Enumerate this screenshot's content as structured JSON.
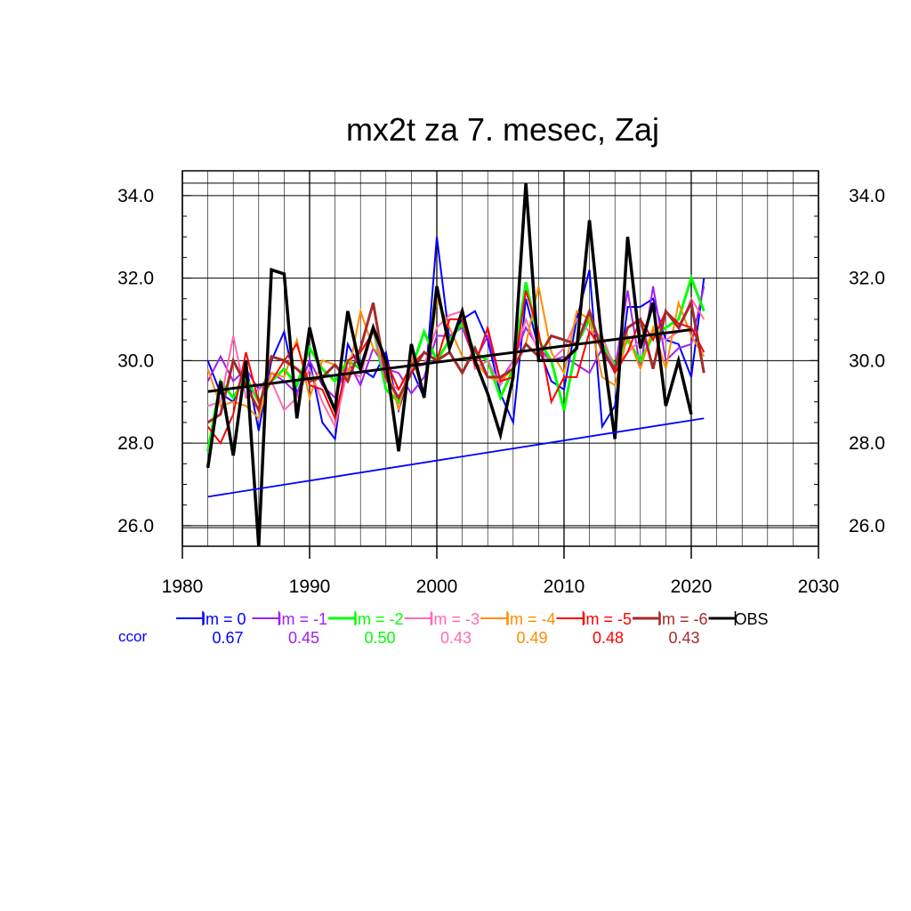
{
  "chart_data": {
    "type": "line",
    "title": "mx2t za 7. mesec, Zaj",
    "xlabel": "",
    "ylabel": "",
    "xlim": [
      1980,
      2030
    ],
    "ylim": [
      25.5,
      34.6
    ],
    "x_ticks": [
      1980,
      1990,
      2000,
      2010,
      2020,
      2030
    ],
    "y_ticks": [
      26.0,
      28.0,
      30.0,
      32.0,
      34.0
    ],
    "y_tick_labels": [
      "26.0",
      "28.0",
      "30.0",
      "32.0",
      "34.0"
    ],
    "grid": true,
    "legend_position": "bottom",
    "ccor_label": "ccor",
    "series": [
      {
        "name": "lm = 0",
        "color": "#0000ff",
        "width": 2,
        "ccor": "0.67",
        "x": [
          1982,
          1983,
          1984,
          1985,
          1986,
          1987,
          1988,
          1989,
          1990,
          1991,
          1992,
          1993,
          1994,
          1995,
          1996,
          1997,
          1998,
          1999,
          2000,
          2001,
          2002,
          2003,
          2004,
          2005,
          2006,
          2007,
          2008,
          2009,
          2010,
          2011,
          2012,
          2013,
          2014,
          2015,
          2016,
          2017,
          2018,
          2019,
          2020,
          2021
        ],
        "y": [
          30.0,
          29.2,
          29.0,
          29.9,
          28.3,
          30.0,
          30.7,
          29.2,
          30.0,
          28.5,
          28.1,
          30.4,
          29.8,
          29.6,
          30.2,
          28.8,
          29.8,
          29.1,
          33.0,
          30.5,
          31.0,
          31.2,
          30.5,
          29.2,
          28.5,
          31.5,
          30.3,
          29.5,
          29.3,
          31.0,
          32.2,
          28.4,
          28.9,
          31.3,
          31.3,
          31.5,
          30.5,
          30.4,
          29.6,
          32.0
        ]
      },
      {
        "name": "lm = -1",
        "color": "#a020f0",
        "width": 2,
        "ccor": "0.45",
        "x": [
          1982,
          1983,
          1984,
          1985,
          1986,
          1987,
          1988,
          1989,
          1990,
          1991,
          1992,
          1993,
          1994,
          1995,
          1996,
          1997,
          1998,
          1999,
          2000,
          2001,
          2002,
          2003,
          2004,
          2005,
          2006,
          2007,
          2008,
          2009,
          2010,
          2011,
          2012,
          2013,
          2014,
          2015,
          2016,
          2017,
          2018,
          2019,
          2020,
          2021
        ],
        "y": [
          29.5,
          30.1,
          29.5,
          29.8,
          29.3,
          29.7,
          29.5,
          29.2,
          30.0,
          29.4,
          29.1,
          30.0,
          29.4,
          30.3,
          29.8,
          29.7,
          29.2,
          29.6,
          30.6,
          30.6,
          30.8,
          30.0,
          30.6,
          29.5,
          30.0,
          30.8,
          30.3,
          30.0,
          30.1,
          29.9,
          29.7,
          30.3,
          29.8,
          31.7,
          29.8,
          31.8,
          30.0,
          30.3,
          30.4,
          31.8
        ]
      },
      {
        "name": "lm = -2",
        "color": "#00ff00",
        "width": 3,
        "ccor": "0.50",
        "x": [
          1982,
          1983,
          1984,
          1985,
          1986,
          1987,
          1988,
          1989,
          1990,
          1991,
          1992,
          1993,
          1994,
          1995,
          1996,
          1997,
          1998,
          1999,
          2000,
          2001,
          2002,
          2003,
          2004,
          2005,
          2006,
          2007,
          2008,
          2009,
          2010,
          2011,
          2012,
          2013,
          2014,
          2015,
          2016,
          2017,
          2018,
          2019,
          2020,
          2021
        ],
        "y": [
          27.8,
          29.5,
          29.1,
          29.6,
          29.0,
          29.5,
          29.8,
          29.4,
          30.3,
          29.8,
          29.5,
          30.0,
          29.8,
          30.8,
          29.3,
          29.0,
          29.8,
          30.7,
          30.0,
          30.5,
          30.9,
          30.2,
          30.0,
          29.1,
          29.8,
          31.9,
          30.5,
          30.0,
          28.8,
          30.4,
          31.0,
          30.4,
          29.9,
          30.5,
          30.0,
          30.6,
          30.8,
          31.0,
          32.0,
          31.2
        ]
      },
      {
        "name": "lm = -3",
        "color": "#ff69b4",
        "width": 2,
        "ccor": "0.43",
        "x": [
          1982,
          1983,
          1984,
          1985,
          1986,
          1987,
          1988,
          1989,
          1990,
          1991,
          1992,
          1993,
          1994,
          1995,
          1996,
          1997,
          1998,
          1999,
          2000,
          2001,
          2002,
          2003,
          2004,
          2005,
          2006,
          2007,
          2008,
          2009,
          2010,
          2011,
          2012,
          2013,
          2014,
          2015,
          2016,
          2017,
          2018,
          2019,
          2020,
          2021
        ],
        "y": [
          28.9,
          29.0,
          30.6,
          29.1,
          29.3,
          29.5,
          28.8,
          29.1,
          29.8,
          29.0,
          28.4,
          29.8,
          29.6,
          30.8,
          29.5,
          29.3,
          29.8,
          29.9,
          30.8,
          31.1,
          31.2,
          29.8,
          30.0,
          29.4,
          30.0,
          31.0,
          30.2,
          30.0,
          30.3,
          31.0,
          30.7,
          30.6,
          29.8,
          30.2,
          30.5,
          30.7,
          30.5,
          30.7,
          31.5,
          31.0
        ]
      },
      {
        "name": "lm = -4",
        "color": "#ff8c00",
        "width": 2,
        "ccor": "0.49",
        "x": [
          1982,
          1983,
          1984,
          1985,
          1986,
          1987,
          1988,
          1989,
          1990,
          1991,
          1992,
          1993,
          1994,
          1995,
          1996,
          1997,
          1998,
          1999,
          2000,
          2001,
          2002,
          2003,
          2004,
          2005,
          2006,
          2007,
          2008,
          2009,
          2010,
          2011,
          2012,
          2013,
          2014,
          2015,
          2016,
          2017,
          2018,
          2019,
          2020,
          2021
        ],
        "y": [
          29.8,
          28.9,
          29.0,
          28.9,
          28.6,
          29.7,
          29.6,
          30.5,
          29.1,
          30.0,
          29.9,
          29.6,
          31.2,
          30.3,
          30.0,
          28.8,
          30.1,
          29.2,
          31.5,
          30.8,
          30.1,
          30.0,
          29.6,
          29.5,
          29.8,
          30.4,
          31.8,
          30.2,
          29.7,
          31.2,
          31.0,
          29.6,
          29.4,
          30.6,
          29.8,
          30.8,
          29.8,
          31.4,
          30.6,
          30.1
        ]
      },
      {
        "name": "lm = -5",
        "color": "#ff0000",
        "width": 2,
        "ccor": "0.48",
        "x": [
          1982,
          1983,
          1984,
          1985,
          1986,
          1987,
          1988,
          1989,
          1990,
          1991,
          1992,
          1993,
          1994,
          1995,
          1996,
          1997,
          1998,
          1999,
          2000,
          2001,
          2002,
          2003,
          2004,
          2005,
          2006,
          2007,
          2008,
          2009,
          2010,
          2011,
          2012,
          2013,
          2014,
          2015,
          2016,
          2017,
          2018,
          2019,
          2020,
          2021
        ],
        "y": [
          28.4,
          28.0,
          28.7,
          30.2,
          29.0,
          29.5,
          30.0,
          30.4,
          29.4,
          29.3,
          28.6,
          30.0,
          30.2,
          30.7,
          30.0,
          29.3,
          29.9,
          30.2,
          30.0,
          31.0,
          31.0,
          29.9,
          30.8,
          29.5,
          29.6,
          31.7,
          30.7,
          29.0,
          29.6,
          29.6,
          30.7,
          30.3,
          29.7,
          30.2,
          31.0,
          30.5,
          31.2,
          30.9,
          30.8,
          30.2
        ]
      },
      {
        "name": "lm = -6",
        "color": "#a52a2a",
        "width": 3,
        "ccor": "0.43",
        "x": [
          1982,
          1983,
          1984,
          1985,
          1986,
          1987,
          1988,
          1989,
          1990,
          1991,
          1992,
          1993,
          1994,
          1995,
          1996,
          1997,
          1998,
          1999,
          2000,
          2001,
          2002,
          2003,
          2004,
          2005,
          2006,
          2007,
          2008,
          2009,
          2010,
          2011,
          2012,
          2013,
          2014,
          2015,
          2016,
          2017,
          2018,
          2019,
          2020,
          2021
        ],
        "y": [
          28.5,
          28.7,
          30.0,
          29.4,
          28.8,
          30.1,
          30.0,
          29.8,
          29.5,
          29.6,
          29.9,
          29.5,
          30.3,
          31.4,
          29.6,
          29.1,
          29.7,
          30.2,
          30.0,
          30.2,
          29.7,
          30.3,
          29.6,
          29.6,
          29.8,
          30.4,
          30.1,
          30.6,
          30.5,
          30.4,
          31.2,
          30.2,
          29.8,
          30.8,
          31.0,
          29.8,
          31.2,
          30.8,
          31.4,
          29.7
        ]
      },
      {
        "name": "OBS",
        "color": "#000000",
        "width": 3.5,
        "ccor": "",
        "x": [
          1982,
          1983,
          1984,
          1985,
          1986,
          1987,
          1988,
          1989,
          1990,
          1991,
          1992,
          1993,
          1994,
          1995,
          1996,
          1997,
          1998,
          1999,
          2000,
          2001,
          2002,
          2003,
          2004,
          2005,
          2006,
          2007,
          2008,
          2009,
          2010,
          2011,
          2012,
          2013,
          2014,
          2015,
          2016,
          2017,
          2018,
          2019,
          2020
        ],
        "y": [
          27.4,
          29.5,
          27.7,
          30.0,
          25.5,
          32.2,
          32.1,
          28.6,
          30.8,
          29.5,
          28.8,
          31.2,
          29.8,
          30.8,
          30.0,
          27.8,
          30.4,
          29.1,
          31.8,
          30.3,
          31.2,
          30.0,
          29.2,
          28.2,
          29.6,
          34.3,
          30.0,
          30.0,
          30.0,
          30.3,
          33.4,
          30.4,
          28.1,
          33.0,
          30.3,
          31.4,
          28.9,
          30.0,
          28.7
        ]
      }
    ],
    "trend_lines": [
      {
        "name": "OBS trend",
        "color": "#000000",
        "width": 3,
        "x": [
          1982,
          2020
        ],
        "y": [
          29.25,
          30.75
        ]
      },
      {
        "name": "lm = 0 trend",
        "color": "#0000ff",
        "width": 1.8,
        "x": [
          1982,
          2021
        ],
        "y": [
          26.7,
          28.6
        ]
      }
    ]
  }
}
